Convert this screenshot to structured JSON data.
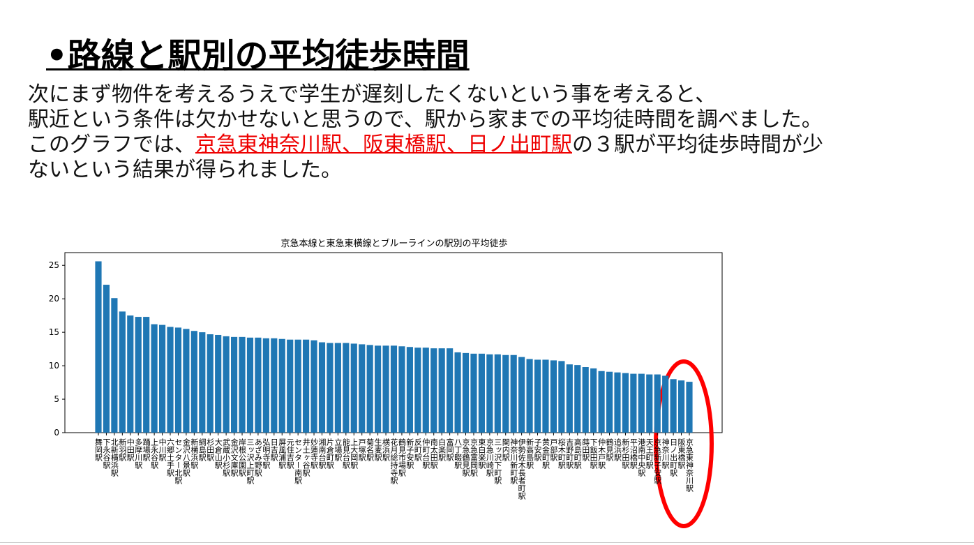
{
  "header": {
    "title": "•路線と駅別の平均徒歩時間"
  },
  "body": {
    "line1": "次にまず物件を考えるうえで学生が遅刻したくないという事を考えると、",
    "line2": "駅近という条件は欠かせないと思うので、駅から家までの平均徒時間を調べました。",
    "line3a": "このグラフでは、",
    "line3b": "京急東神奈川駅、阪東橋駅、日ノ出町駅",
    "line3c": "の３駅が平均徒歩時間が少",
    "line4": "ないという結果が得られました。"
  },
  "chart_data": {
    "type": "bar",
    "title": "京急本線と東急東横線とブルーラインの駅別の平均徒歩",
    "color": "#1f77b4",
    "categories": [
      "舞岡駅",
      "下永谷駅",
      "北新横浜駅",
      "新羽駅",
      "中田駅",
      "多摩川駅",
      "踊場駅",
      "上永谷駅",
      "中川駅",
      "六郷土手駅",
      "センター北駅",
      "金沢八景駅",
      "新横浜駅",
      "綱島駅",
      "杉田駅",
      "大倉山駅",
      "武蔵小杉駅",
      "金沢文庫駅",
      "岸根公園駅",
      "三ッ沢上町駅",
      "あざみ野駅",
      "弘明寺駅",
      "日吉駅",
      "屏風浦駅",
      "元住吉駅",
      "センター南駅",
      "井土ヶ谷駅",
      "妙蓮寺駅",
      "湘南台駅",
      "片倉町駅",
      "立場駅",
      "能見台駅",
      "上大岡駅",
      "戸塚駅",
      "菊名駅",
      "生麦駅",
      "横浜駅",
      "花月総持寺駅",
      "鶴見市場駅",
      "新子安駅",
      "反町駅",
      "仲町台駅",
      "南太田駅",
      "白楽駅",
      "富岡駅",
      "八丁畷駅",
      "京急鶴見駅",
      "京急富岡駅",
      "東白楽駅",
      "京急川崎駅",
      "三ッ沢下町駅",
      "関内駅",
      "神奈川新町駅",
      "伊勢佐木長者町駅",
      "新高島駅",
      "子安駅",
      "黄金町駅",
      "戸部駅",
      "桜木町駅",
      "吉野町駅",
      "高島町駅",
      "蒔田駅",
      "下飯田駅",
      "仲木戸駅",
      "鶴見駅",
      "追浜駅",
      "新杉田駅",
      "平沼橋駅",
      "港南中央駅",
      "天王町駅",
      "京急新子安駅",
      "神奈川駅",
      "日ノ出町駅",
      "阪東橋駅",
      "京急東神奈川駅"
    ],
    "values": [
      25.6,
      22.1,
      20.1,
      18.1,
      17.5,
      17.3,
      17.3,
      16.2,
      16.1,
      15.8,
      15.7,
      15.5,
      15.2,
      15.0,
      14.7,
      14.6,
      14.4,
      14.3,
      14.3,
      14.2,
      14.2,
      14.1,
      14.1,
      14.0,
      13.9,
      13.9,
      13.9,
      13.8,
      13.5,
      13.4,
      13.4,
      13.4,
      13.3,
      13.2,
      13.1,
      13.0,
      13.0,
      13.0,
      12.9,
      12.8,
      12.7,
      12.7,
      12.6,
      12.6,
      12.6,
      12.0,
      11.9,
      11.8,
      11.8,
      11.7,
      11.7,
      11.6,
      11.6,
      11.3,
      11.0,
      10.9,
      10.9,
      10.8,
      10.7,
      10.2,
      10.1,
      9.8,
      9.6,
      9.2,
      9.1,
      9.0,
      8.9,
      8.8,
      8.8,
      8.7,
      8.7,
      8.5,
      8.0,
      7.8,
      7.6
    ],
    "ylim": [
      0,
      26.9
    ],
    "yticks": [
      0,
      5,
      10,
      15,
      20,
      25
    ]
  }
}
